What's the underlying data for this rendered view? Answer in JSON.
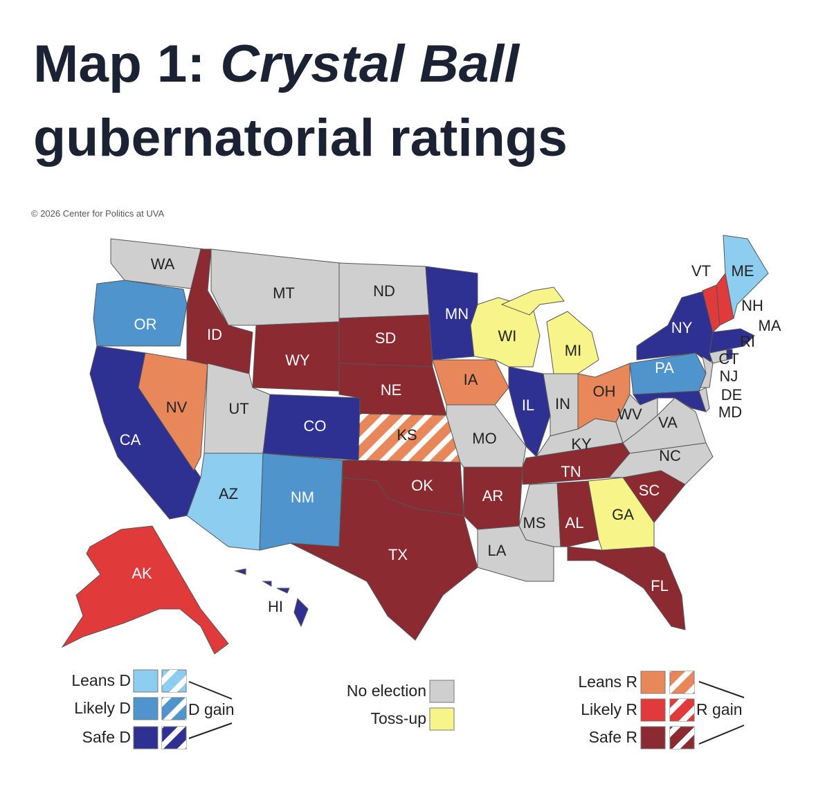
{
  "header": {
    "title_prefix": "Map 1:",
    "title_italic": "Crystal Ball",
    "title_line2": "gubernatorial ratings",
    "copyright": "© 2026 Center for Politics at UVA"
  },
  "states": [
    {
      "label": "WA",
      "color": "#cfcfcf"
    },
    {
      "label": "OR",
      "color": "#4f94cd"
    },
    {
      "label": "CA",
      "color": "#2e3192"
    },
    {
      "label": "NV",
      "color": "#e8875a"
    },
    {
      "label": "ID",
      "color": "#8b2a30"
    },
    {
      "label": "MT",
      "color": "#cfcfcf"
    },
    {
      "label": "WY",
      "color": "#8b2a30"
    },
    {
      "label": "UT",
      "color": "#cfcfcf"
    },
    {
      "label": "CO",
      "color": "#2e3192"
    },
    {
      "label": "AZ",
      "color": "#8dcdf0"
    },
    {
      "label": "NM",
      "color": "#4f94cd"
    },
    {
      "label": "ND",
      "color": "#cfcfcf"
    },
    {
      "label": "SD",
      "color": "#8b2a30"
    },
    {
      "label": "NE",
      "color": "#8b2a30"
    },
    {
      "label": "KS",
      "color": "#e8875a",
      "gain": true
    },
    {
      "label": "OK",
      "color": "#8b2a30"
    },
    {
      "label": "TX",
      "color": "#8b2a30"
    },
    {
      "label": "MN",
      "color": "#2e3192"
    },
    {
      "label": "IA",
      "color": "#e8875a"
    },
    {
      "label": "MO",
      "color": "#cfcfcf"
    },
    {
      "label": "AR",
      "color": "#8b2a30"
    },
    {
      "label": "LA",
      "color": "#cfcfcf"
    },
    {
      "label": "WI",
      "color": "#f7f58a"
    },
    {
      "label": "MI",
      "color": "#f7f58a"
    },
    {
      "label": "IL",
      "color": "#2e3192"
    },
    {
      "label": "IN",
      "color": "#cfcfcf"
    },
    {
      "label": "OH",
      "color": "#e8875a"
    },
    {
      "label": "KY",
      "color": "#cfcfcf"
    },
    {
      "label": "TN",
      "color": "#8b2a30"
    },
    {
      "label": "MS",
      "color": "#cfcfcf"
    },
    {
      "label": "AL",
      "color": "#8b2a30"
    },
    {
      "label": "GA",
      "color": "#f7f58a"
    },
    {
      "label": "FL",
      "color": "#8b2a30"
    },
    {
      "label": "SC",
      "color": "#8b2a30"
    },
    {
      "label": "NC",
      "color": "#cfcfcf"
    },
    {
      "label": "VA",
      "color": "#cfcfcf"
    },
    {
      "label": "WV",
      "color": "#cfcfcf"
    },
    {
      "label": "PA",
      "color": "#4f94cd"
    },
    {
      "label": "NY",
      "color": "#2e3192"
    },
    {
      "label": "MD",
      "color": "#2e3192"
    },
    {
      "label": "DE",
      "color": "#cfcfcf"
    },
    {
      "label": "NJ",
      "color": "#cfcfcf"
    },
    {
      "label": "CT",
      "color": "#cfcfcf"
    },
    {
      "label": "RI",
      "color": "#2e3192"
    },
    {
      "label": "MA",
      "color": "#2e3192"
    },
    {
      "label": "VT",
      "color": "#e03a3a"
    },
    {
      "label": "NH",
      "color": "#e03a3a"
    },
    {
      "label": "ME",
      "color": "#8dcdf0"
    },
    {
      "label": "AK",
      "color": "#e03a3a"
    },
    {
      "label": "HI",
      "color": "#2e3192"
    }
  ],
  "legend": {
    "left": {
      "items": [
        {
          "label": "Leans D",
          "color": "#8dcdf0"
        },
        {
          "label": "Likely D",
          "color": "#4f94cd"
        },
        {
          "label": "Safe D",
          "color": "#2e3192"
        }
      ],
      "gain_label": "D gain"
    },
    "middle": {
      "items": [
        {
          "label": "No election",
          "color": "#cfcfcf"
        },
        {
          "label": "Toss-up",
          "color": "#f7f58a"
        }
      ]
    },
    "right": {
      "items": [
        {
          "label": "Leans R",
          "color": "#e8875a"
        },
        {
          "label": "Likely R",
          "color": "#e03a3a"
        },
        {
          "label": "Safe R",
          "color": "#8b2a30"
        }
      ],
      "gain_label": "R gain"
    }
  }
}
